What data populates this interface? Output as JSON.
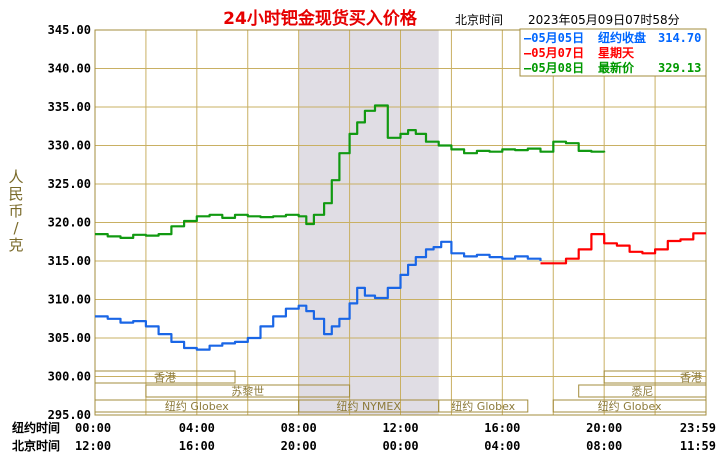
{
  "title": "24小时钯金现货买入价格",
  "header_label": "北京时间",
  "header_datetime": "2023年05月09日07时58分",
  "ylabel": "人民币/克",
  "legend": [
    {
      "date": "05月05日",
      "label": "纽约收盘",
      "value": "314.70",
      "color": "#0066ff"
    },
    {
      "date": "05月07日",
      "label": "星期天",
      "value": "",
      "color": "#ff0000"
    },
    {
      "date": "05月08日",
      "label": "最新价",
      "value": "329.13",
      "color": "#009900"
    }
  ],
  "bottom_rows": [
    {
      "label": "纽约时间",
      "ticks": [
        "00:00",
        "04:00",
        "08:00",
        "12:00",
        "16:00",
        "20:00",
        "23:59"
      ]
    },
    {
      "label": "北京时间",
      "ticks": [
        "12:00",
        "16:00",
        "20:00",
        "00:00",
        "04:00",
        "08:00",
        "11:59"
      ]
    }
  ],
  "markets": {
    "hongkong_left": "香港",
    "paris": "苏黎世",
    "globex_left": "纽约 Globex",
    "nymex": "纽约 NYMEX",
    "globex_mid": "纽约 Globex",
    "sydney": "悉尼",
    "hongkong_right": "香港",
    "globex_right": "纽约 Globex"
  },
  "chart_data": {
    "type": "line",
    "title": "24小时钯金现货买入价格",
    "ylabel": "人民币/克",
    "xlim": [
      0,
      24
    ],
    "ylim": [
      295,
      345
    ],
    "yticks": [
      "295.00",
      "300.00",
      "305.00",
      "310.00",
      "315.00",
      "320.00",
      "325.00",
      "330.00",
      "335.00",
      "340.00",
      "345.00"
    ],
    "shaded_range": [
      8,
      13.5
    ],
    "grid": true,
    "series": [
      {
        "name": "05月05日 纽约收盘",
        "color": "#1a66e6",
        "x": [
          0,
          0.5,
          1,
          1.5,
          2,
          2.5,
          3,
          3.5,
          4,
          4.5,
          5,
          5.5,
          6,
          6.5,
          7,
          7.5,
          8,
          8.3,
          8.6,
          9,
          9.3,
          9.6,
          10,
          10.3,
          10.6,
          11,
          11.5,
          12,
          12.3,
          12.6,
          13,
          13.3,
          13.6,
          14,
          14.5,
          15,
          15.5,
          16,
          16.5,
          17,
          17.5
        ],
        "values": [
          307.8,
          307.5,
          307.0,
          307.2,
          306.5,
          305.5,
          304.5,
          303.7,
          303.5,
          304.0,
          304.3,
          304.5,
          305.0,
          306.5,
          307.8,
          308.8,
          309.2,
          308.5,
          307.5,
          305.5,
          306.5,
          307.5,
          309.5,
          311.5,
          310.5,
          310.2,
          311.5,
          313.2,
          314.5,
          315.5,
          316.5,
          316.8,
          317.5,
          316.0,
          315.6,
          315.8,
          315.5,
          315.3,
          315.6,
          315.3,
          315.0
        ]
      },
      {
        "name": "05月07日 星期天",
        "color": "#ff0000",
        "x": [
          17.5,
          18,
          18.5,
          19,
          19.5,
          20,
          20.5,
          21,
          21.5,
          22,
          22.5,
          23,
          23.5,
          24
        ],
        "values": [
          314.7,
          314.7,
          315.3,
          316.5,
          318.5,
          317.3,
          317.0,
          316.2,
          316.0,
          316.5,
          317.6,
          317.8,
          318.6,
          318.6
        ]
      },
      {
        "name": "05月08日 最新价",
        "color": "#119911",
        "x": [
          0,
          0.5,
          1,
          1.5,
          2,
          2.5,
          3,
          3.5,
          4,
          4.5,
          5,
          5.5,
          6,
          6.5,
          7,
          7.5,
          8,
          8.3,
          8.6,
          9,
          9.3,
          9.6,
          10,
          10.3,
          10.6,
          11,
          11.5,
          12,
          12.3,
          12.6,
          13,
          13.5,
          14,
          14.5,
          15,
          15.5,
          16,
          16.5,
          17,
          17.5,
          18,
          18.5,
          19,
          19.5,
          20
        ],
        "values": [
          318.5,
          318.2,
          318.0,
          318.4,
          318.3,
          318.5,
          319.5,
          320.2,
          320.8,
          321.0,
          320.6,
          321.0,
          320.8,
          320.7,
          320.8,
          321.0,
          320.8,
          319.8,
          321.0,
          322.5,
          325.5,
          329.0,
          331.5,
          333.0,
          334.5,
          335.2,
          331.0,
          331.5,
          332.0,
          331.5,
          330.5,
          330.0,
          329.5,
          329.0,
          329.3,
          329.2,
          329.5,
          329.4,
          329.6,
          329.2,
          330.5,
          330.3,
          329.3,
          329.2,
          329.1
        ]
      }
    ]
  }
}
